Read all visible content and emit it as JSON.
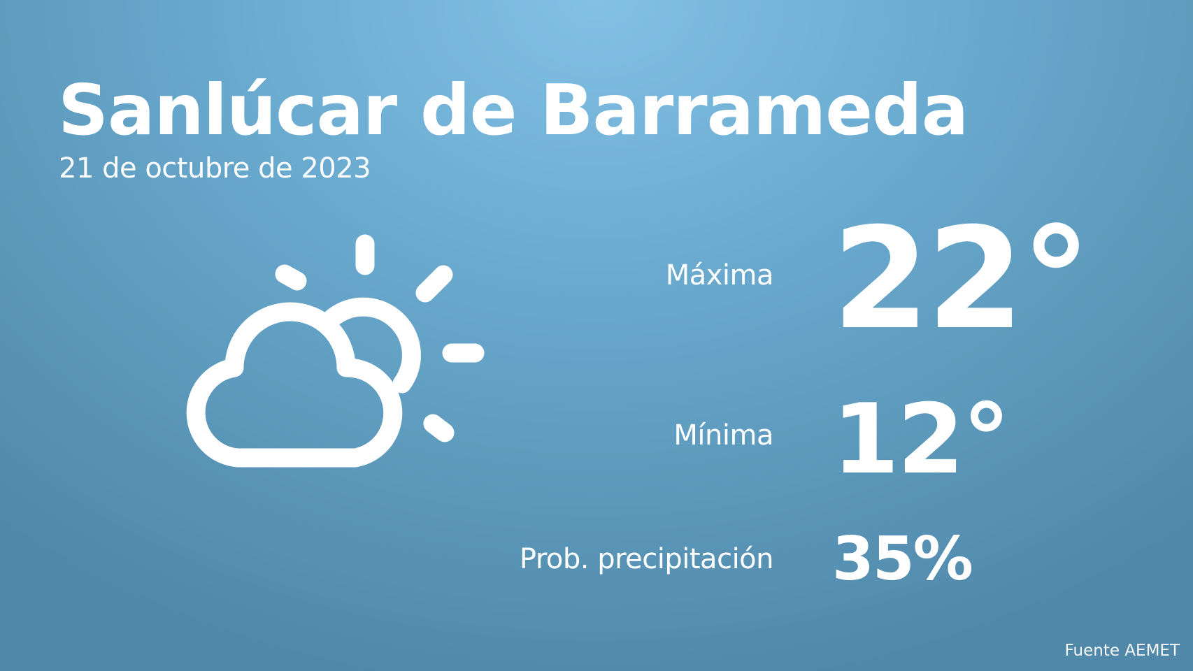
{
  "location": "Sanlúcar de Barrameda",
  "date": "21 de octubre de 2023",
  "weather_icon": "partly-cloudy-icon",
  "forecast": {
    "max_label": "Máxima",
    "max_value": "22°",
    "min_label": "Mínima",
    "min_value": "12°",
    "precip_label": "Prob. precipitación",
    "precip_value": "35%"
  },
  "source": "Fuente AEMET",
  "colors": {
    "background_top": "#82c1e4",
    "background_bottom": "#5088aa",
    "foreground": "#ffffff"
  }
}
